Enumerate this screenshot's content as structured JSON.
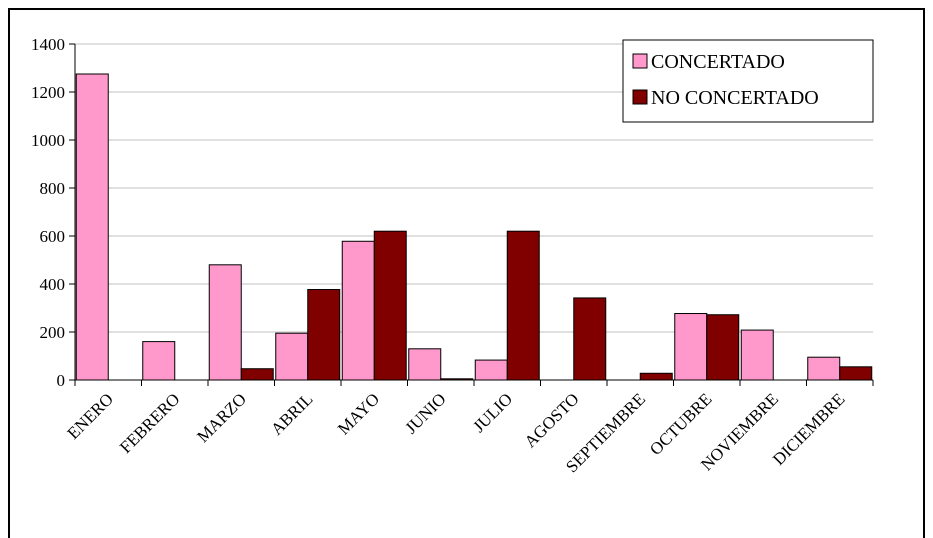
{
  "chart_data": {
    "type": "bar",
    "categories": [
      "ENERO",
      "FEBRERO",
      "MARZO",
      "ABRIL",
      "MAYO",
      "JUNIO",
      "JULIO",
      "AGOSTO",
      "SEPTIEMBRE",
      "OCTUBRE",
      "NOVIEMBRE",
      "DICIEMBRE"
    ],
    "series": [
      {
        "name": "CONCERTADO",
        "color": "#ff99cc",
        "values": [
          1275,
          160,
          480,
          195,
          578,
          130,
          83,
          0,
          0,
          277,
          208,
          95
        ]
      },
      {
        "name": "NO CONCERTADO",
        "color": "#800000",
        "values": [
          0,
          0,
          47,
          377,
          620,
          5,
          620,
          342,
          28,
          272,
          0,
          55
        ]
      }
    ],
    "yticks": [
      0,
      200,
      400,
      600,
      800,
      1000,
      1200,
      1400
    ],
    "ylim": [
      0,
      1400
    ],
    "grid": true,
    "legend": "top-right"
  }
}
